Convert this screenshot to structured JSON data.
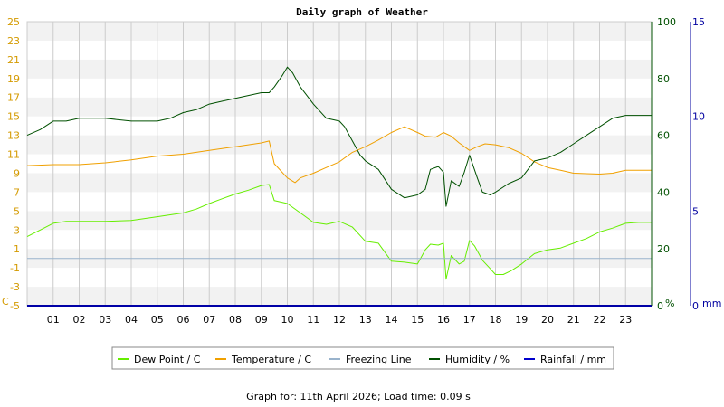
{
  "chart_data": {
    "type": "line",
    "title": "Daily graph of Weather",
    "footer": "Graph for: 11th April 2026; Load time: 0.09 s",
    "x_ticks": [
      "01",
      "02",
      "03",
      "04",
      "05",
      "06",
      "07",
      "08",
      "09",
      "10",
      "11",
      "12",
      "13",
      "14",
      "15",
      "16",
      "17",
      "18",
      "19",
      "20",
      "21",
      "22",
      "23"
    ],
    "xlim": [
      0,
      24
    ],
    "left_axis": {
      "unit": "C",
      "ylim": [
        -5,
        25
      ],
      "ticks": [
        -5,
        -3,
        -1,
        1,
        3,
        5,
        7,
        9,
        11,
        13,
        15,
        17,
        19,
        21,
        23,
        25
      ],
      "color": "#d49a00"
    },
    "right_axis_1": {
      "unit": "%",
      "ylim": [
        0,
        100
      ],
      "ticks": [
        0,
        20,
        40,
        60,
        80,
        100
      ],
      "color": "#005000"
    },
    "right_axis_2": {
      "unit": "mm",
      "ylim": [
        0,
        15
      ],
      "ticks": [
        0,
        5,
        10,
        15
      ],
      "color": "#0000a0"
    },
    "legend": [
      "Dew Point / C",
      "Temperature / C",
      "Freezing Line",
      "Humidity / %",
      "Rainfall / mm"
    ],
    "series": [
      {
        "name": "Dew Point / C",
        "axis": "left",
        "color": "#66ee00",
        "x": [
          0,
          0.5,
          1,
          1.5,
          2,
          3,
          4,
          5,
          6,
          6.5,
          7,
          7.5,
          8,
          8.5,
          9,
          9.3,
          9.5,
          10,
          10.5,
          11,
          11.5,
          12,
          12.5,
          13,
          13.5,
          14,
          14.5,
          15,
          15.3,
          15.5,
          15.8,
          16,
          16.1,
          16.3,
          16.6,
          16.8,
          17,
          17.2,
          17.5,
          17.8,
          18,
          18.3,
          18.6,
          19,
          19.5,
          20,
          20.5,
          21,
          21.5,
          22,
          22.5,
          23,
          23.5,
          24
        ],
        "y": [
          2.3,
          3.0,
          3.7,
          3.9,
          3.9,
          3.9,
          4.0,
          4.4,
          4.8,
          5.2,
          5.8,
          6.3,
          6.8,
          7.2,
          7.7,
          7.8,
          6.1,
          5.8,
          4.8,
          3.8,
          3.6,
          3.9,
          3.3,
          1.8,
          1.6,
          -0.3,
          -0.4,
          -0.6,
          0.9,
          1.5,
          1.4,
          1.6,
          -2.2,
          0.3,
          -0.6,
          -0.3,
          1.9,
          1.3,
          -0.2,
          -1.1,
          -1.7,
          -1.7,
          -1.3,
          -0.6,
          0.5,
          0.9,
          1.1,
          1.6,
          2.1,
          2.8,
          3.2,
          3.7,
          3.8,
          3.8
        ]
      },
      {
        "name": "Temperature / C",
        "axis": "left",
        "color": "#f0a000",
        "x": [
          0,
          1,
          2,
          3,
          4,
          5,
          6,
          7,
          8,
          8.5,
          9,
          9.3,
          9.5,
          10,
          10.3,
          10.5,
          11,
          11.5,
          12,
          12.5,
          13,
          13.5,
          14,
          14.5,
          15,
          15.3,
          15.7,
          16,
          16.3,
          16.6,
          17,
          17.3,
          17.6,
          18,
          18.5,
          19,
          19.5,
          20,
          20.5,
          21,
          21.5,
          22,
          22.5,
          23,
          23.5,
          24
        ],
        "y": [
          9.8,
          9.9,
          9.9,
          10.1,
          10.4,
          10.8,
          11.0,
          11.4,
          11.8,
          12.0,
          12.2,
          12.4,
          10.0,
          8.5,
          8.0,
          8.5,
          9.0,
          9.6,
          10.2,
          11.2,
          11.8,
          12.5,
          13.3,
          13.9,
          13.3,
          12.9,
          12.8,
          13.3,
          12.9,
          12.2,
          11.4,
          11.8,
          12.1,
          12.0,
          11.7,
          11.1,
          10.2,
          9.6,
          9.3,
          9.0,
          8.95,
          8.9,
          9.0,
          9.3,
          9.3,
          9.3
        ]
      },
      {
        "name": "Freezing Line",
        "axis": "left",
        "color": "#99b3cc",
        "x": [
          0,
          24
        ],
        "y": [
          0,
          0
        ]
      },
      {
        "name": "Humidity / %",
        "axis": "right_1",
        "color": "#005000",
        "x": [
          0,
          0.5,
          1,
          1.5,
          2,
          3,
          4,
          5,
          5.5,
          6,
          6.5,
          7,
          7.5,
          8,
          8.5,
          9,
          9.3,
          9.5,
          9.8,
          10,
          10.2,
          10.5,
          11,
          11.5,
          12,
          12.2,
          12.5,
          12.8,
          13,
          13.5,
          14,
          14.5,
          15,
          15.3,
          15.5,
          15.8,
          16,
          16.1,
          16.3,
          16.6,
          16.8,
          17,
          17.3,
          17.5,
          17.8,
          18,
          18.5,
          19,
          19.5,
          20,
          20.5,
          21,
          21.5,
          22,
          22.5,
          23,
          24
        ],
        "y": [
          60,
          62,
          65,
          65,
          66,
          66,
          65,
          65,
          66,
          68,
          69,
          71,
          72,
          73,
          74,
          75,
          75,
          77,
          81,
          84,
          82,
          77,
          71,
          66,
          65,
          63,
          58,
          53,
          51,
          48,
          41,
          38,
          39,
          41,
          48,
          49,
          47,
          35,
          44,
          42,
          47,
          53,
          45,
          40,
          39,
          40,
          43,
          45,
          51,
          52,
          54,
          57,
          60,
          63,
          66,
          67,
          67
        ]
      },
      {
        "name": "Rainfall / mm",
        "axis": "right_2",
        "color": "#0000cc",
        "x": [
          0,
          24
        ],
        "y": [
          0,
          0
        ]
      }
    ]
  }
}
